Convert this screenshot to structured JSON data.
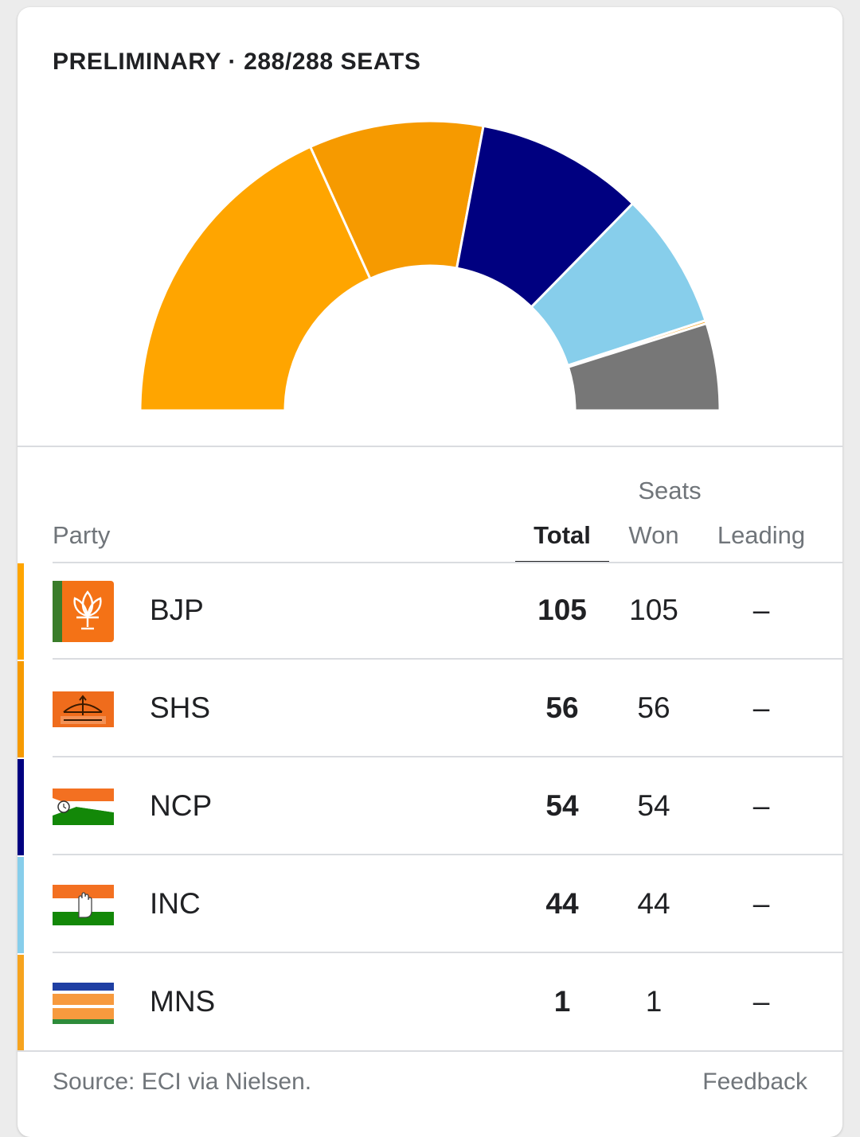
{
  "header": {
    "title": "PRELIMINARY · 288/288 SEATS"
  },
  "chart_data": {
    "type": "pie",
    "shape": "semicircle-donut",
    "total_seats": 288,
    "segments": [
      {
        "name": "BJP",
        "value": 105,
        "color": "#FFA500"
      },
      {
        "name": "SHS",
        "value": 56,
        "color": "#F69A00"
      },
      {
        "name": "NCP",
        "value": 54,
        "color": "#000080"
      },
      {
        "name": "INC",
        "value": 44,
        "color": "#87CEEB"
      },
      {
        "name": "MNS",
        "value": 1,
        "color": "#F6A31E"
      },
      {
        "name": "",
        "value": 28,
        "color": "#777777"
      }
    ]
  },
  "table": {
    "col_party": "Party",
    "col_group": "Seats",
    "col_total": "Total",
    "col_won": "Won",
    "col_leading": "Leading",
    "rows": [
      {
        "party": "BJP",
        "total": "105",
        "won": "105",
        "leading": "–",
        "color": "#FFA500",
        "logo": "bjp-lotus-flag"
      },
      {
        "party": "SHS",
        "total": "56",
        "won": "56",
        "leading": "–",
        "color": "#F69A00",
        "logo": "shivsena-bow-arrow"
      },
      {
        "party": "NCP",
        "total": "54",
        "won": "54",
        "leading": "–",
        "color": "#000080",
        "logo": "ncp-clock-flag"
      },
      {
        "party": "INC",
        "total": "44",
        "won": "44",
        "leading": "–",
        "color": "#87CEEB",
        "logo": "inc-hand-flag"
      },
      {
        "party": "MNS",
        "total": "1",
        "won": "1",
        "leading": "–",
        "color": "#F6A31E",
        "logo": "mns-flag"
      }
    ]
  },
  "footer": {
    "source": "Source: ECI via Nielsen.",
    "feedback": "Feedback"
  }
}
